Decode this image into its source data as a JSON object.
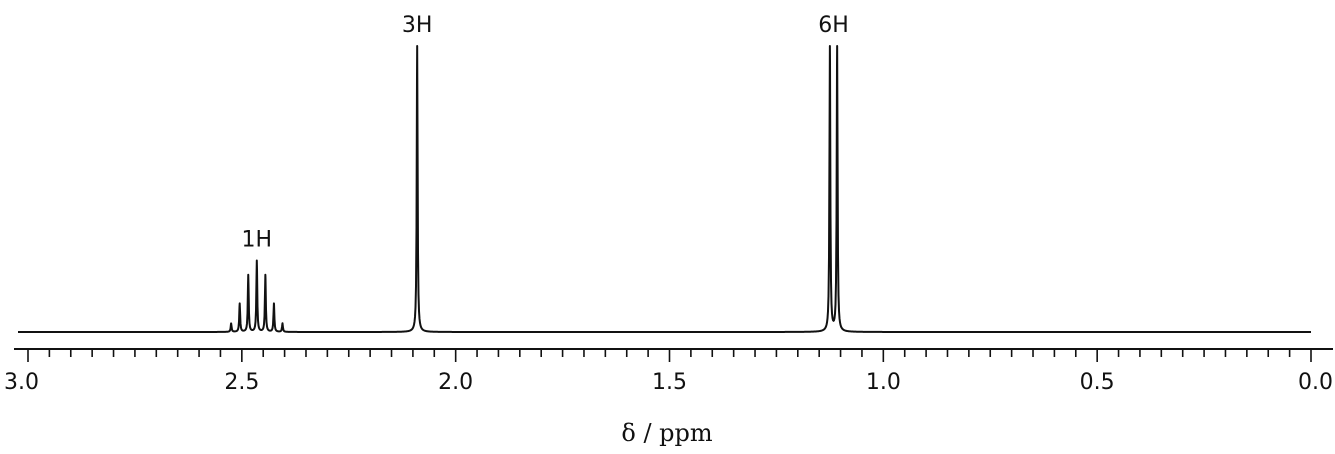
{
  "chart_data": {
    "type": "line",
    "xlabel": "δ / ppm",
    "xlim": [
      3.0,
      0.0
    ],
    "x_reversed": true,
    "major_ticks": [
      3.0,
      2.5,
      2.0,
      1.5,
      1.0,
      0.5,
      0.0
    ],
    "tick_labels": [
      "3.0",
      "2.5",
      "2.0",
      "1.5",
      "1.0",
      "0.5",
      "0.0"
    ],
    "minor_tick_step": 0.05,
    "grid": false,
    "peaks": [
      {
        "label": "1H",
        "multiplicity": "septet",
        "lines": [
          {
            "x": 2.525,
            "intensity": 0.03
          },
          {
            "x": 2.505,
            "intensity": 0.1
          },
          {
            "x": 2.485,
            "intensity": 0.2
          },
          {
            "x": 2.465,
            "intensity": 0.25
          },
          {
            "x": 2.445,
            "intensity": 0.2
          },
          {
            "x": 2.425,
            "intensity": 0.1
          },
          {
            "x": 2.405,
            "intensity": 0.03
          }
        ]
      },
      {
        "label": "3H",
        "multiplicity": "singlet",
        "lines": [
          {
            "x": 2.09,
            "intensity": 1.0
          }
        ]
      },
      {
        "label": "6H",
        "multiplicity": "doublet",
        "lines": [
          {
            "x": 1.125,
            "intensity": 1.0
          },
          {
            "x": 1.108,
            "intensity": 1.0
          }
        ]
      }
    ]
  }
}
